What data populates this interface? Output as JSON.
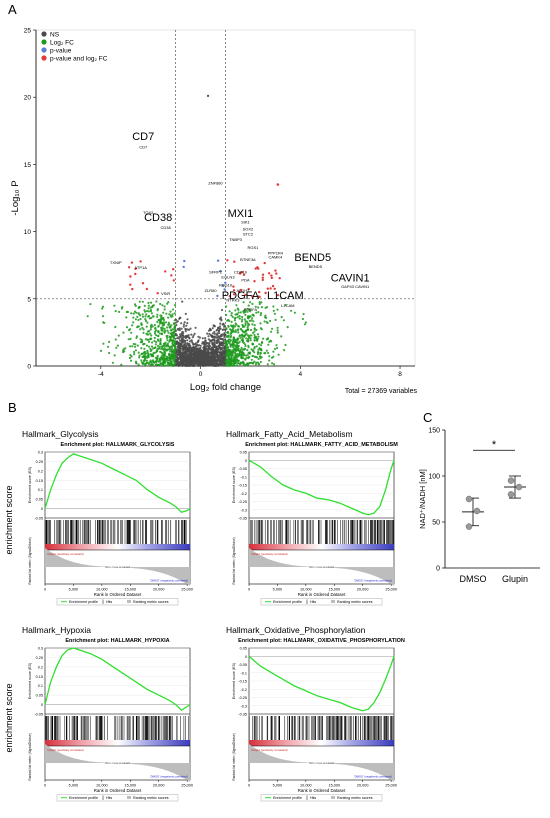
{
  "panel_labels": {
    "a": "A",
    "b": "B",
    "c": "C"
  },
  "colors": {
    "ns": "#4a4a4a",
    "fc": "#1e9a1e",
    "pval": "#5b7fd6",
    "both": "#e03c3c",
    "green": "#2fe02f",
    "red_bar": "#d62f3a",
    "blue_bar": "#3b3bbd"
  },
  "chart_data": [
    {
      "type": "scatter",
      "name": "volcano",
      "xlabel": "Log₂ fold change",
      "ylabel": "-Log₁₀ P",
      "xlim": [
        -6.6,
        8.6
      ],
      "ylim": [
        0,
        25
      ],
      "xticks": [
        -4,
        0,
        4,
        8
      ],
      "yticks": [
        0,
        5,
        10,
        15,
        20,
        25
      ],
      "fc_cutoffs": [
        -1,
        1
      ],
      "p_cutoff": 5.0,
      "total_label": "Total = 27369 variables",
      "legend": [
        "NS",
        "Log₂ FC",
        "p-value",
        "p-value and log₂ FC"
      ],
      "legend_position": "top-left",
      "labels": [
        {
          "text": "CD7",
          "x": -2.3,
          "y": 16.8,
          "size": "large"
        },
        {
          "text": "CD7",
          "x": -2.3,
          "y": 16.2,
          "size": "small"
        },
        {
          "text": "TOX2",
          "x": -2.1,
          "y": 11.3,
          "size": "small"
        },
        {
          "text": "CD38",
          "x": -1.7,
          "y": 10.8,
          "size": "large"
        },
        {
          "text": "CD38",
          "x": -1.4,
          "y": 10.2,
          "size": "small"
        },
        {
          "text": "TXNIP",
          "x": -3.4,
          "y": 7.6,
          "size": "small"
        },
        {
          "text": "ATP1A",
          "x": -2.4,
          "y": 7.2,
          "size": "small"
        },
        {
          "text": "VSIR",
          "x": -1.4,
          "y": 5.3,
          "size": "small"
        },
        {
          "text": "ZNF880",
          "x": 0.6,
          "y": 13.5,
          "size": "small"
        },
        {
          "text": "MXI1",
          "x": 1.6,
          "y": 11.1,
          "size": "large"
        },
        {
          "text": "SIK1",
          "x": 1.8,
          "y": 10.6,
          "size": "small"
        },
        {
          "text": "SOX2",
          "x": 1.9,
          "y": 10.1,
          "size": "small"
        },
        {
          "text": "STC2",
          "x": 1.9,
          "y": 9.7,
          "size": "small"
        },
        {
          "text": "TNBP3",
          "x": 1.4,
          "y": 9.3,
          "size": "small"
        },
        {
          "text": "RGS1",
          "x": 2.1,
          "y": 8.7,
          "size": "small"
        },
        {
          "text": "PPP1R4",
          "x": 3.0,
          "y": 8.3,
          "size": "small"
        },
        {
          "text": "CAMK4",
          "x": 3.0,
          "y": 8.0,
          "size": "small"
        },
        {
          "text": "BTNE3A",
          "x": 1.9,
          "y": 7.8,
          "size": "small"
        },
        {
          "text": "BEND5",
          "x": 4.5,
          "y": 7.8,
          "size": "large"
        },
        {
          "text": "BEND5",
          "x": 4.6,
          "y": 7.3,
          "size": "small"
        },
        {
          "text": "SFRP2",
          "x": 0.6,
          "y": 6.9,
          "size": "small"
        },
        {
          "text": "CDK19",
          "x": 1.6,
          "y": 6.9,
          "size": "small"
        },
        {
          "text": "EGLN3",
          "x": 1.1,
          "y": 6.5,
          "size": "small"
        },
        {
          "text": "PDA",
          "x": 1.8,
          "y": 6.3,
          "size": "small"
        },
        {
          "text": "RGS10",
          "x": 1.0,
          "y": 5.9,
          "size": "small"
        },
        {
          "text": "CAVIN1",
          "x": 6.0,
          "y": 6.3,
          "size": "large"
        },
        {
          "text": "GAP43 CAVIN1",
          "x": 6.2,
          "y": 5.8,
          "size": "small"
        },
        {
          "text": "ZLR80",
          "x": 0.4,
          "y": 5.5,
          "size": "small"
        },
        {
          "text": "ALDH7",
          "x": 1.7,
          "y": 5.5,
          "size": "small"
        },
        {
          "text": "PDGFA",
          "x": 1.6,
          "y": 5.0,
          "size": "large"
        },
        {
          "text": "L1CAM",
          "x": 3.4,
          "y": 5.0,
          "size": "large"
        },
        {
          "text": "L1CAM",
          "x": 3.5,
          "y": 4.4,
          "size": "small"
        },
        {
          "text": "NTRK3",
          "x": 1.3,
          "y": 4.8,
          "size": "small"
        },
        {
          "text": "PDGFA",
          "x": 2.0,
          "y": 4.1,
          "size": "small"
        }
      ]
    },
    {
      "type": "line",
      "name": "gsea-glycolysis",
      "title": "Hallmark_Glycolysis",
      "plot_title": "Enrichment plot: HALLMARK_GLYCOLYSIS",
      "ylim": [
        -0.05,
        0.3
      ],
      "yticks": [
        0.3,
        0.25,
        0.2,
        0.15,
        0.1,
        0.05,
        0.0,
        -0.05
      ],
      "x": [
        0,
        1000,
        2000,
        3000,
        4000,
        5000,
        6000,
        8000,
        10000,
        12000,
        14000,
        16000,
        18000,
        20000,
        22000,
        23000,
        24000,
        25000,
        25500
      ],
      "es": [
        0,
        0.1,
        0.18,
        0.24,
        0.27,
        0.29,
        0.28,
        0.26,
        0.24,
        0.21,
        0.18,
        0.15,
        0.1,
        0.06,
        0.03,
        0.01,
        -0.02,
        -0.01,
        0
      ],
      "xticks": [
        0,
        5000,
        10000,
        15000,
        20000,
        25000
      ],
      "hits_density": "front",
      "pos_label": "'Glupin' (positively correlated)",
      "neg_label": "'DMSO' (negatively correlated)",
      "zero_cross": "Zero cross at 12124",
      "xlabel": "Rank in Ordered Dataset",
      "ylabel_top": "Enrichment score (ES)",
      "ylabel_bottom": "Ranked list metric (Signal2Noise)",
      "legend": [
        "Enrichment profile",
        "Hits",
        "Ranking metric scores"
      ]
    },
    {
      "type": "line",
      "name": "gsea-fatty-acid",
      "title": "Hallmark_Fatty_Acid_Metabolism",
      "plot_title": "Enrichment plot: HALLMARK_FATTY_ACID_METABOLISM",
      "ylim": [
        -0.35,
        0.05
      ],
      "yticks": [
        0.05,
        0.0,
        -0.05,
        -0.1,
        -0.15,
        -0.2,
        -0.25,
        -0.3,
        -0.35
      ],
      "x": [
        0,
        1000,
        2000,
        4000,
        6000,
        8000,
        10000,
        12000,
        14000,
        16000,
        18000,
        20000,
        21000,
        22000,
        23000,
        24000,
        25000,
        25500
      ],
      "es": [
        0,
        -0.02,
        -0.04,
        -0.1,
        -0.15,
        -0.18,
        -0.2,
        -0.23,
        -0.24,
        -0.26,
        -0.29,
        -0.32,
        -0.33,
        -0.32,
        -0.28,
        -0.18,
        -0.05,
        0
      ],
      "xticks": [
        0,
        5000,
        10000,
        15000,
        20000,
        25000
      ],
      "hits_density": "back",
      "pos_label": "'Glupin' (positively correlated)",
      "neg_label": "'DMSO' (negatively correlated)",
      "zero_cross": "Zero cross at 12124",
      "xlabel": "Rank in Ordered Dataset",
      "ylabel_top": "Enrichment score (ES)",
      "ylabel_bottom": "Ranked list metric (Signal2Noise)",
      "legend": [
        "Enrichment profile",
        "Hits",
        "Ranking metric scores"
      ]
    },
    {
      "type": "line",
      "name": "gsea-hypoxia",
      "title": "Hallmark_Hypoxia",
      "plot_title": "Enrichment plot: HALLMARK_HYPOXIA",
      "ylim": [
        -0.05,
        0.3
      ],
      "yticks": [
        0.3,
        0.25,
        0.2,
        0.15,
        0.1,
        0.05,
        0.0,
        -0.05
      ],
      "x": [
        0,
        1000,
        2000,
        3000,
        4000,
        5000,
        6000,
        8000,
        10000,
        12000,
        14000,
        16000,
        18000,
        20000,
        22000,
        23000,
        24000,
        25000,
        25500
      ],
      "es": [
        0,
        0.12,
        0.2,
        0.26,
        0.29,
        0.3,
        0.29,
        0.27,
        0.24,
        0.2,
        0.16,
        0.12,
        0.08,
        0.05,
        0.02,
        0.0,
        -0.03,
        -0.01,
        0
      ],
      "xticks": [
        0,
        5000,
        10000,
        15000,
        20000,
        25000
      ],
      "hits_density": "front",
      "pos_label": "'Glupin' (positively correlated)",
      "neg_label": "'DMSO' (negatively correlated)",
      "zero_cross": "Zero cross at 12124",
      "xlabel": "Rank in Ordered Dataset",
      "ylabel_top": "Enrichment score (ES)",
      "ylabel_bottom": "Ranked list metric (Signal2Noise)",
      "legend": [
        "Enrichment profile",
        "Hits",
        "Ranking metric scores"
      ]
    },
    {
      "type": "line",
      "name": "gsea-oxphos",
      "title": "Hallmark_Oxidative_Phosphorylation",
      "plot_title": "Enrichment plot: HALLMARK_OXIDATIVE_PHOSPHORYLATION",
      "ylim": [
        -0.35,
        0.05
      ],
      "yticks": [
        0.05,
        0.0,
        -0.05,
        -0.1,
        -0.15,
        -0.2,
        -0.25,
        -0.3,
        -0.35
      ],
      "x": [
        0,
        1000,
        2000,
        4000,
        6000,
        8000,
        10000,
        12000,
        14000,
        16000,
        18000,
        19000,
        20000,
        21000,
        22000,
        23000,
        24000,
        25000,
        25500
      ],
      "es": [
        0,
        -0.03,
        -0.06,
        -0.1,
        -0.14,
        -0.18,
        -0.21,
        -0.24,
        -0.26,
        -0.28,
        -0.31,
        -0.32,
        -0.33,
        -0.32,
        -0.28,
        -0.22,
        -0.14,
        -0.05,
        0
      ],
      "xticks": [
        0,
        5000,
        10000,
        15000,
        20000,
        25000
      ],
      "hits_density": "back",
      "pos_label": "'Glupin' (positively correlated)",
      "neg_label": "'DMSO' (negatively correlated)",
      "zero_cross": "Zero cross at 12124",
      "xlabel": "Rank in Ordered Dataset",
      "ylabel_top": "Enrichment score (ES)",
      "ylabel_bottom": "Ranked list metric (Signal2Noise)",
      "legend": [
        "Enrichment profile",
        "Hits",
        "Ranking metric scores"
      ]
    },
    {
      "type": "scatter",
      "name": "nad-ratio",
      "ylabel": "NAD⁺/NADH [nM]",
      "ylim": [
        0,
        150
      ],
      "yticks": [
        0,
        50,
        100,
        150
      ],
      "categories": [
        "DMSO",
        "Glupin"
      ],
      "points": [
        [
          45,
          62,
          75
        ],
        [
          80,
          88,
          95
        ]
      ],
      "means": [
        61,
        88
      ],
      "sem": [
        15,
        12
      ],
      "significance": "*"
    }
  ],
  "enrichment_score_label": "enrichment score"
}
